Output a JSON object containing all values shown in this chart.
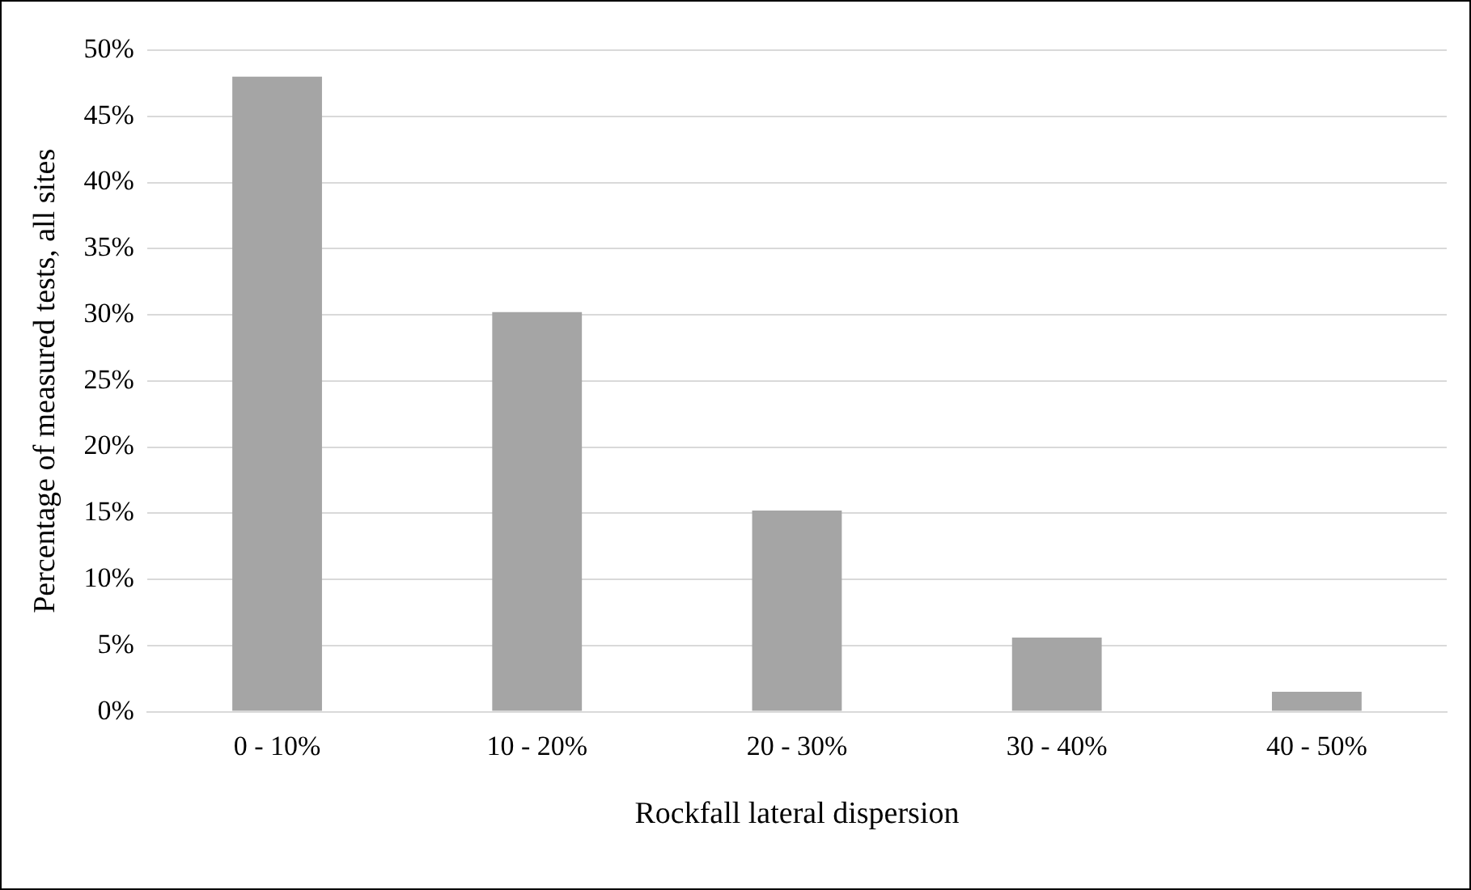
{
  "chart_data": {
    "type": "bar",
    "xlabel": "Rockfall lateral dispersion",
    "ylabel": "Percentage of measured tests, all sites",
    "categories": [
      "0 - 10%",
      "10 - 20%",
      "20 - 30%",
      "30 - 40%",
      "40 - 50%"
    ],
    "values": [
      48,
      30.2,
      15.2,
      5.6,
      1.5
    ],
    "color": "#a5a5a5",
    "ylim": [
      0,
      50
    ],
    "yticks": [
      {
        "value": 0,
        "label": "0%"
      },
      {
        "value": 5,
        "label": "5%"
      },
      {
        "value": 10,
        "label": "10%"
      },
      {
        "value": 15,
        "label": "15%"
      },
      {
        "value": 20,
        "label": "20%"
      },
      {
        "value": 25,
        "label": "25%"
      },
      {
        "value": 30,
        "label": "30%"
      },
      {
        "value": 35,
        "label": "35%"
      },
      {
        "value": 40,
        "label": "40%"
      },
      {
        "value": 45,
        "label": "45%"
      },
      {
        "value": 50,
        "label": "50%"
      }
    ],
    "grid": "y"
  }
}
